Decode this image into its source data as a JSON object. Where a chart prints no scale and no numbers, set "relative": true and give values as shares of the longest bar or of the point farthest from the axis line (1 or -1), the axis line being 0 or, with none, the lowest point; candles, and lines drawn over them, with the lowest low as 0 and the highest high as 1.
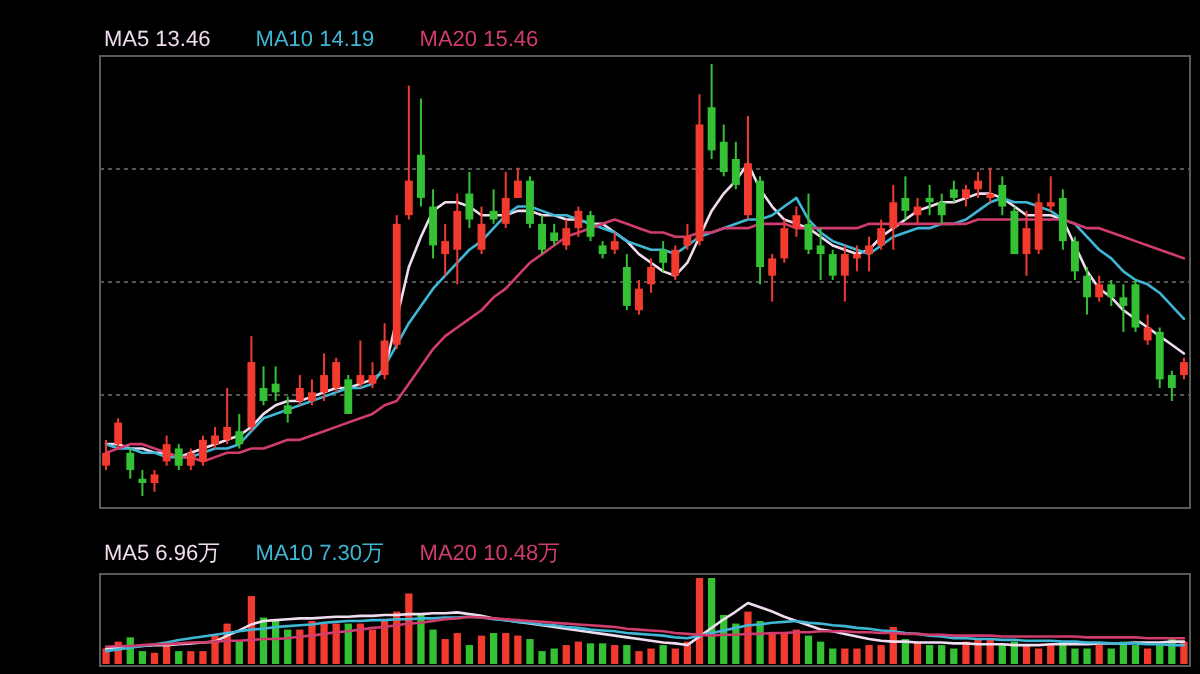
{
  "chart_data": [
    {
      "type": "candlestick",
      "relative": true,
      "grid": "y",
      "legend": "top left",
      "categories": [
        null,
        null,
        null,
        null,
        null,
        null,
        null,
        null,
        null,
        null,
        null,
        null,
        null,
        null,
        null,
        null,
        null,
        null,
        null,
        null,
        null,
        null,
        null,
        null,
        null,
        null,
        null,
        null,
        null,
        null,
        null,
        null,
        null,
        null,
        null,
        null,
        null,
        null,
        null,
        null,
        null,
        null,
        null,
        null,
        null,
        null,
        null,
        null,
        null,
        null,
        null,
        null,
        null,
        null,
        null,
        null,
        null,
        null,
        null,
        null,
        null,
        null,
        null,
        null,
        null,
        null,
        null,
        null,
        null,
        null,
        null,
        null,
        null,
        null,
        null,
        null,
        null,
        null,
        null,
        null,
        null,
        null,
        null,
        null,
        null,
        null,
        null,
        null,
        null,
        null
      ],
      "ohlc": [
        [
          0.07,
          0.13,
          0.06,
          0.1
        ],
        [
          0.12,
          0.18,
          0.11,
          0.17
        ],
        [
          0.1,
          0.11,
          0.04,
          0.06
        ],
        [
          0.04,
          0.06,
          0.0,
          0.03
        ],
        [
          0.03,
          0.06,
          0.01,
          0.05
        ],
        [
          0.08,
          0.14,
          0.07,
          0.12
        ],
        [
          0.11,
          0.12,
          0.06,
          0.07
        ],
        [
          0.07,
          0.11,
          0.06,
          0.1
        ],
        [
          0.08,
          0.14,
          0.07,
          0.13
        ],
        [
          0.12,
          0.16,
          0.11,
          0.14
        ],
        [
          0.13,
          0.25,
          0.12,
          0.16
        ],
        [
          0.15,
          0.19,
          0.11,
          0.12
        ],
        [
          0.16,
          0.37,
          0.15,
          0.31
        ],
        [
          0.25,
          0.3,
          0.21,
          0.22
        ],
        [
          0.26,
          0.3,
          0.22,
          0.24
        ],
        [
          0.21,
          0.23,
          0.17,
          0.19
        ],
        [
          0.22,
          0.28,
          0.21,
          0.25
        ],
        [
          0.22,
          0.27,
          0.21,
          0.24
        ],
        [
          0.24,
          0.33,
          0.22,
          0.28
        ],
        [
          0.25,
          0.32,
          0.24,
          0.31
        ],
        [
          0.27,
          0.28,
          0.19,
          0.19
        ],
        [
          0.26,
          0.36,
          0.25,
          0.28
        ],
        [
          0.26,
          0.31,
          0.25,
          0.28
        ],
        [
          0.28,
          0.4,
          0.27,
          0.36
        ],
        [
          0.35,
          0.65,
          0.34,
          0.63
        ],
        [
          0.65,
          0.95,
          0.64,
          0.73
        ],
        [
          0.79,
          0.92,
          0.67,
          0.69
        ],
        [
          0.67,
          0.71,
          0.55,
          0.58
        ],
        [
          0.56,
          0.63,
          0.51,
          0.59
        ],
        [
          0.57,
          0.7,
          0.49,
          0.66
        ],
        [
          0.7,
          0.75,
          0.62,
          0.64
        ],
        [
          0.57,
          0.67,
          0.56,
          0.63
        ],
        [
          0.66,
          0.71,
          0.63,
          0.64
        ],
        [
          0.63,
          0.75,
          0.62,
          0.69
        ],
        [
          0.69,
          0.76,
          0.69,
          0.73
        ],
        [
          0.73,
          0.74,
          0.62,
          0.63
        ],
        [
          0.63,
          0.65,
          0.56,
          0.57
        ],
        [
          0.61,
          0.63,
          0.58,
          0.59
        ],
        [
          0.58,
          0.64,
          0.57,
          0.62
        ],
        [
          0.62,
          0.67,
          0.6,
          0.66
        ],
        [
          0.65,
          0.66,
          0.59,
          0.6
        ],
        [
          0.58,
          0.59,
          0.55,
          0.56
        ],
        [
          0.57,
          0.61,
          0.56,
          0.59
        ],
        [
          0.53,
          0.56,
          0.43,
          0.44
        ],
        [
          0.43,
          0.5,
          0.42,
          0.48
        ],
        [
          0.49,
          0.55,
          0.47,
          0.53
        ],
        [
          0.57,
          0.59,
          0.52,
          0.54
        ],
        [
          0.51,
          0.58,
          0.5,
          0.57
        ],
        [
          0.58,
          0.63,
          0.57,
          0.6
        ],
        [
          0.59,
          0.93,
          0.58,
          0.86
        ],
        [
          0.9,
          1.0,
          0.78,
          0.8
        ],
        [
          0.82,
          0.86,
          0.74,
          0.75
        ],
        [
          0.78,
          0.82,
          0.71,
          0.72
        ],
        [
          0.65,
          0.88,
          0.64,
          0.77
        ],
        [
          0.73,
          0.74,
          0.49,
          0.53
        ],
        [
          0.51,
          0.56,
          0.45,
          0.55
        ],
        [
          0.55,
          0.64,
          0.54,
          0.62
        ],
        [
          0.62,
          0.67,
          0.6,
          0.65
        ],
        [
          0.63,
          0.7,
          0.56,
          0.57
        ],
        [
          0.58,
          0.62,
          0.5,
          0.56
        ],
        [
          0.56,
          0.57,
          0.5,
          0.51
        ],
        [
          0.51,
          0.58,
          0.45,
          0.56
        ],
        [
          0.55,
          0.58,
          0.52,
          0.56
        ],
        [
          0.56,
          0.6,
          0.52,
          0.58
        ],
        [
          0.58,
          0.64,
          0.57,
          0.62
        ],
        [
          0.62,
          0.72,
          0.57,
          0.68
        ],
        [
          0.69,
          0.74,
          0.64,
          0.66
        ],
        [
          0.65,
          0.69,
          0.63,
          0.67
        ],
        [
          0.69,
          0.72,
          0.65,
          0.68
        ],
        [
          0.68,
          0.7,
          0.63,
          0.65
        ],
        [
          0.71,
          0.73,
          0.68,
          0.69
        ],
        [
          0.69,
          0.72,
          0.67,
          0.71
        ],
        [
          0.71,
          0.75,
          0.69,
          0.73
        ],
        [
          0.69,
          0.76,
          0.68,
          0.7
        ],
        [
          0.72,
          0.74,
          0.65,
          0.67
        ],
        [
          0.66,
          0.67,
          0.56,
          0.56
        ],
        [
          0.56,
          0.66,
          0.51,
          0.62
        ],
        [
          0.57,
          0.7,
          0.56,
          0.68
        ],
        [
          0.67,
          0.74,
          0.66,
          0.68
        ],
        [
          0.69,
          0.71,
          0.57,
          0.59
        ],
        [
          0.59,
          0.6,
          0.5,
          0.52
        ],
        [
          0.51,
          0.53,
          0.42,
          0.46
        ],
        [
          0.46,
          0.51,
          0.45,
          0.49
        ],
        [
          0.49,
          0.5,
          0.44,
          0.46
        ],
        [
          0.46,
          0.49,
          0.38,
          0.44
        ],
        [
          0.49,
          0.5,
          0.38,
          0.39
        ],
        [
          0.36,
          0.42,
          0.35,
          0.39
        ],
        [
          0.38,
          0.39,
          0.25,
          0.27
        ],
        [
          0.28,
          0.29,
          0.22,
          0.25
        ],
        [
          0.28,
          0.32,
          0.27,
          0.31
        ]
      ],
      "colors": [
        "#f23a2f",
        "#f23a2f",
        "#34c234",
        "#34c234",
        "#f23a2f",
        "#f23a2f",
        "#34c234",
        "#f23a2f",
        "#f23a2f",
        "#f23a2f",
        "#f23a2f",
        "#34c234",
        "#f23a2f",
        "#34c234",
        "#34c234",
        "#34c234",
        "#f23a2f",
        "#f23a2f",
        "#f23a2f",
        "#f23a2f",
        "#34c234",
        "#f23a2f",
        "#f23a2f",
        "#f23a2f",
        "#f23a2f",
        "#f23a2f",
        "#34c234",
        "#34c234",
        "#f23a2f",
        "#f23a2f",
        "#34c234",
        "#f23a2f",
        "#34c234",
        "#f23a2f",
        "#f23a2f",
        "#34c234",
        "#34c234",
        "#34c234",
        "#f23a2f",
        "#f23a2f",
        "#34c234",
        "#34c234",
        "#f23a2f",
        "#34c234",
        "#f23a2f",
        "#f23a2f",
        "#34c234",
        "#f23a2f",
        "#f23a2f",
        "#f23a2f",
        "#34c234",
        "#34c234",
        "#34c234",
        "#f23a2f",
        "#34c234",
        "#f23a2f",
        "#f23a2f",
        "#f23a2f",
        "#34c234",
        "#34c234",
        "#34c234",
        "#f23a2f",
        "#f23a2f",
        "#f23a2f",
        "#f23a2f",
        "#f23a2f",
        "#34c234",
        "#f23a2f",
        "#34c234",
        "#34c234",
        "#34c234",
        "#f23a2f",
        "#f23a2f",
        "#f23a2f",
        "#34c234",
        "#34c234",
        "#f23a2f",
        "#f23a2f",
        "#f23a2f",
        "#34c234",
        "#34c234",
        "#34c234",
        "#f23a2f",
        "#34c234",
        "#34c234",
        "#34c234",
        "#f23a2f",
        "#34c234",
        "#34c234",
        "#f23a2f"
      ],
      "series": [
        {
          "name": "MA5 13.46",
          "type": "line",
          "color": "#f0dcef",
          "values": [
            0.12,
            0.12,
            0.11,
            0.11,
            0.1,
            0.1,
            0.09,
            0.1,
            0.11,
            0.12,
            0.13,
            0.14,
            0.16,
            0.19,
            0.21,
            0.22,
            0.22,
            0.23,
            0.24,
            0.25,
            0.25,
            0.26,
            0.27,
            0.29,
            null,
            0.53,
            0.6,
            0.66,
            0.68,
            0.68,
            0.67,
            0.65,
            0.65,
            0.65,
            0.66,
            0.66,
            0.65,
            0.65,
            0.64,
            0.64,
            0.63,
            0.63,
            0.61,
            0.59,
            0.56,
            0.54,
            0.52,
            0.51,
            0.54,
            0.6,
            0.66,
            0.7,
            0.73,
            0.77,
            0.71,
            0.67,
            0.64,
            0.63,
            0.62,
            0.6,
            0.58,
            0.57,
            0.56,
            0.57,
            0.6,
            0.62,
            0.64,
            0.66,
            0.67,
            0.68,
            0.68,
            0.69,
            0.7,
            0.7,
            0.69,
            0.67,
            0.65,
            0.65,
            0.65,
            0.64,
            0.58,
            0.52,
            0.48,
            0.46,
            0.43,
            0.41,
            0.39,
            0.37,
            0.35,
            0.33
          ]
        },
        {
          "name": "MA10 14.19",
          "type": "line",
          "color": "#3fb6d6",
          "values": [
            0.12,
            0.11,
            0.11,
            0.1,
            0.1,
            0.09,
            0.09,
            0.09,
            0.1,
            0.11,
            0.11,
            0.12,
            0.15,
            0.18,
            0.19,
            0.2,
            0.21,
            0.22,
            0.23,
            0.24,
            0.25,
            0.25,
            0.26,
            0.3,
            0.35,
            0.4,
            0.44,
            0.48,
            0.51,
            0.54,
            0.57,
            0.59,
            0.62,
            0.65,
            0.67,
            0.67,
            0.66,
            0.65,
            0.65,
            0.64,
            0.63,
            0.62,
            0.61,
            0.59,
            0.58,
            0.57,
            0.57,
            0.56,
            0.58,
            0.6,
            0.61,
            0.62,
            0.63,
            0.64,
            0.64,
            0.65,
            0.67,
            0.69,
            0.64,
            0.61,
            0.59,
            0.58,
            0.57,
            0.56,
            0.58,
            0.6,
            0.61,
            0.62,
            0.62,
            0.63,
            0.63,
            0.64,
            0.66,
            0.68,
            0.69,
            0.68,
            0.68,
            0.67,
            0.66,
            0.64,
            0.63,
            0.6,
            0.57,
            0.55,
            0.52,
            0.5,
            0.49,
            0.47,
            0.44,
            0.41
          ]
        },
        {
          "name": "MA20 15.46",
          "type": "line",
          "color": "#d03c6e",
          "values": [
            0.1,
            0.11,
            0.12,
            0.12,
            0.11,
            0.1,
            0.09,
            0.09,
            0.08,
            0.09,
            0.1,
            0.1,
            0.11,
            0.11,
            0.12,
            0.13,
            0.13,
            0.14,
            0.15,
            0.16,
            0.17,
            0.18,
            0.19,
            0.21,
            0.22,
            0.26,
            0.3,
            0.34,
            0.37,
            0.39,
            0.41,
            0.43,
            0.46,
            0.48,
            0.51,
            0.54,
            0.56,
            0.58,
            0.6,
            0.61,
            0.62,
            0.63,
            0.64,
            0.63,
            0.62,
            0.61,
            0.61,
            0.6,
            0.6,
            0.61,
            0.61,
            0.62,
            0.62,
            0.62,
            0.63,
            0.63,
            0.63,
            0.62,
            0.62,
            0.62,
            0.62,
            0.62,
            0.62,
            0.63,
            0.63,
            0.63,
            0.63,
            0.63,
            0.63,
            0.63,
            0.63,
            0.63,
            0.64,
            0.64,
            0.64,
            0.64,
            0.64,
            0.64,
            0.64,
            0.64,
            0.63,
            0.62,
            0.62,
            0.61,
            0.6,
            0.59,
            0.58,
            0.57,
            0.56,
            0.55
          ]
        }
      ]
    },
    {
      "type": "bar",
      "relative": true,
      "legend": "top left",
      "categories": [
        null,
        null,
        null,
        null,
        null,
        null,
        null,
        null,
        null,
        null,
        null,
        null,
        null,
        null,
        null,
        null,
        null,
        null,
        null,
        null,
        null,
        null,
        null,
        null,
        null,
        null,
        null,
        null,
        null,
        null,
        null,
        null,
        null,
        null,
        null,
        null,
        null,
        null,
        null,
        null,
        null,
        null,
        null,
        null,
        null,
        null,
        null,
        null,
        null,
        null,
        null,
        null,
        null,
        null,
        null,
        null,
        null,
        null,
        null,
        null,
        null,
        null,
        null,
        null,
        null,
        null,
        null,
        null,
        null,
        null,
        null,
        null,
        null,
        null,
        null,
        null,
        null,
        null,
        null,
        null,
        null,
        null,
        null,
        null,
        null,
        null,
        null,
        null,
        null,
        null
      ],
      "series": [
        {
          "type": "bar",
          "values": [
            0.18,
            0.26,
            0.31,
            0.15,
            0.13,
            0.22,
            0.15,
            0.15,
            0.15,
            0.33,
            0.47,
            0.26,
            0.79,
            0.54,
            0.5,
            0.4,
            0.4,
            0.5,
            0.47,
            0.47,
            0.47,
            0.47,
            0.4,
            0.5,
            0.61,
            0.82,
            0.57,
            0.4,
            0.29,
            0.36,
            0.22,
            0.33,
            0.36,
            0.36,
            0.33,
            0.29,
            0.15,
            0.18,
            0.22,
            0.26,
            0.24,
            0.24,
            0.22,
            0.22,
            0.15,
            0.18,
            0.22,
            0.18,
            0.26,
            1,
            1,
            0.57,
            0.47,
            0.61,
            0.5,
            0.36,
            0.36,
            0.4,
            0.33,
            0.26,
            0.18,
            0.18,
            0.18,
            0.22,
            0.22,
            0.43,
            0.29,
            0.26,
            0.22,
            0.22,
            0.18,
            0.26,
            0.29,
            0.29,
            0.22,
            0.26,
            0.22,
            0.18,
            0.22,
            0.26,
            0.18,
            0.18,
            0.22,
            0.18,
            0.26,
            0.22,
            0.18,
            0.22,
            0.29,
            0.26
          ],
          "colors": [
            "#f23a2f",
            "#f23a2f",
            "#34c234",
            "#34c234",
            "#f23a2f",
            "#f23a2f",
            "#34c234",
            "#f23a2f",
            "#f23a2f",
            "#f23a2f",
            "#f23a2f",
            "#34c234",
            "#f23a2f",
            "#34c234",
            "#34c234",
            "#34c234",
            "#f23a2f",
            "#f23a2f",
            "#f23a2f",
            "#f23a2f",
            "#34c234",
            "#f23a2f",
            "#f23a2f",
            "#f23a2f",
            "#f23a2f",
            "#f23a2f",
            "#34c234",
            "#34c234",
            "#f23a2f",
            "#f23a2f",
            "#34c234",
            "#f23a2f",
            "#34c234",
            "#f23a2f",
            "#f23a2f",
            "#34c234",
            "#34c234",
            "#34c234",
            "#f23a2f",
            "#f23a2f",
            "#34c234",
            "#34c234",
            "#f23a2f",
            "#34c234",
            "#f23a2f",
            "#f23a2f",
            "#34c234",
            "#f23a2f",
            "#f23a2f",
            "#f23a2f",
            "#34c234",
            "#34c234",
            "#34c234",
            "#f23a2f",
            "#34c234",
            "#f23a2f",
            "#f23a2f",
            "#f23a2f",
            "#34c234",
            "#34c234",
            "#34c234",
            "#f23a2f",
            "#f23a2f",
            "#f23a2f",
            "#f23a2f",
            "#f23a2f",
            "#34c234",
            "#f23a2f",
            "#34c234",
            "#34c234",
            "#34c234",
            "#f23a2f",
            "#f23a2f",
            "#f23a2f",
            "#34c234",
            "#34c234",
            "#f23a2f",
            "#f23a2f",
            "#f23a2f",
            "#34c234",
            "#34c234",
            "#34c234",
            "#f23a2f",
            "#34c234",
            "#34c234",
            "#34c234",
            "#f23a2f",
            "#34c234",
            "#34c234",
            "#f23a2f"
          ]
        },
        {
          "name": "MA5 6.96万",
          "type": "line",
          "color": "#f0dcef",
          "values": [
            0.18,
            0.19,
            0.2,
            0.21,
            0.22,
            0.22,
            0.23,
            0.24,
            0.25,
            0.26,
            0.33,
            0.39,
            0.46,
            0.5,
            0.51,
            0.52,
            0.53,
            0.53,
            0.54,
            0.55,
            0.55,
            0.56,
            0.56,
            0.57,
            0.57,
            0.58,
            0.58,
            0.59,
            0.59,
            0.6,
            0.58,
            0.56,
            0.53,
            0.51,
            0.49,
            0.47,
            0.45,
            0.43,
            0.41,
            0.39,
            0.37,
            0.35,
            0.33,
            0.31,
            0.29,
            0.27,
            0.25,
            0.24,
            0.22,
            0.32,
            0.42,
            0.52,
            0.61,
            0.71,
            0.66,
            0.61,
            0.55,
            0.5,
            0.45,
            0.4,
            0.38,
            0.35,
            0.32,
            0.29,
            0.27,
            0.26,
            0.26,
            0.25,
            0.25,
            0.25,
            0.24,
            0.24,
            0.23,
            0.23,
            0.23,
            0.22,
            0.22,
            0.22,
            0.23,
            0.23,
            0.23,
            0.23,
            0.24,
            0.24,
            0.24,
            0.25,
            0.25,
            0.25,
            0.26,
            0.26
          ]
        },
        {
          "name": "MA10 7.30万",
          "type": "line",
          "color": "#3fb6d6",
          "values": [
            0.15,
            0.17,
            0.19,
            0.21,
            0.23,
            0.25,
            0.28,
            0.3,
            0.32,
            0.34,
            0.36,
            0.38,
            0.4,
            0.41,
            0.43,
            0.44,
            0.45,
            0.46,
            0.48,
            0.49,
            0.5,
            0.5,
            0.51,
            0.51,
            0.52,
            0.52,
            0.53,
            0.53,
            0.54,
            0.54,
            0.55,
            0.54,
            0.52,
            0.51,
            0.49,
            0.48,
            0.46,
            0.45,
            0.43,
            0.42,
            0.4,
            0.39,
            0.38,
            0.36,
            0.35,
            0.34,
            0.33,
            0.31,
            0.3,
            0.33,
            0.36,
            0.39,
            0.42,
            0.45,
            0.46,
            0.48,
            0.49,
            0.5,
            0.48,
            0.47,
            0.45,
            0.44,
            0.42,
            0.41,
            0.39,
            0.38,
            0.36,
            0.35,
            0.33,
            0.32,
            0.3,
            0.3,
            0.29,
            0.29,
            0.28,
            0.28,
            0.27,
            0.27,
            0.27,
            0.26,
            0.26,
            0.25,
            0.25,
            0.24,
            0.24,
            0.24,
            0.23,
            0.23,
            0.22,
            0.22
          ]
        },
        {
          "name": "MA20 10.48万",
          "type": "line",
          "color": "#d03c6e",
          "values": [
            0.2,
            0.21,
            0.21,
            0.22,
            0.23,
            0.23,
            0.24,
            0.25,
            0.25,
            0.26,
            0.27,
            0.27,
            0.28,
            0.29,
            0.29,
            0.3,
            0.32,
            0.33,
            0.35,
            0.37,
            0.38,
            0.4,
            0.42,
            0.43,
            0.45,
            0.47,
            0.48,
            0.5,
            0.52,
            0.53,
            0.55,
            0.54,
            0.53,
            0.52,
            0.51,
            0.5,
            0.49,
            0.48,
            0.47,
            0.46,
            0.45,
            0.44,
            0.43,
            0.41,
            0.4,
            0.39,
            0.38,
            0.36,
            0.35,
            0.34,
            0.33,
            0.34,
            0.34,
            0.35,
            0.35,
            0.36,
            0.36,
            0.37,
            0.37,
            0.38,
            0.38,
            0.38,
            0.37,
            0.37,
            0.36,
            0.36,
            0.35,
            0.35,
            0.34,
            0.34,
            0.33,
            0.33,
            0.33,
            0.33,
            0.32,
            0.32,
            0.32,
            0.32,
            0.32,
            0.32,
            0.32,
            0.31,
            0.31,
            0.31,
            0.31,
            0.31,
            0.3,
            0.3,
            0.3,
            0.3
          ]
        }
      ]
    }
  ]
}
